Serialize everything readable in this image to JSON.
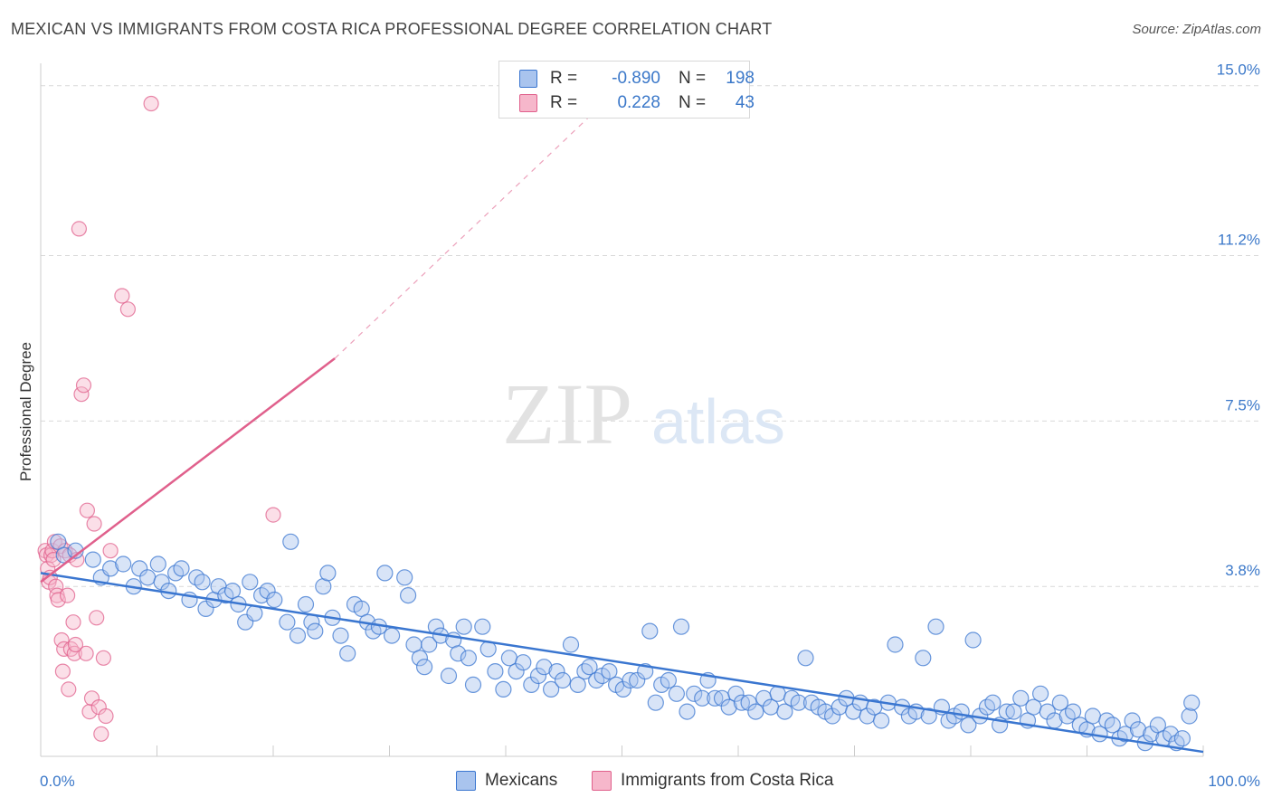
{
  "title": "MEXICAN VS IMMIGRANTS FROM COSTA RICA PROFESSIONAL DEGREE CORRELATION CHART",
  "source": "Source: ZipAtlas.com",
  "watermark": {
    "zip": "ZIP",
    "atlas": "atlas"
  },
  "colors": {
    "blue": "#3a76d0",
    "blue_fill": "#a9c4ee",
    "pink": "#e0608c",
    "pink_fill": "#f6b7cb",
    "tick_text": "#3b78c9",
    "grid": "#d9d9d9"
  },
  "legend": {
    "rows": [
      {
        "swatch": "blue",
        "r_label": "R =",
        "r_value": "-0.890",
        "n_label": "N =",
        "n_value": "198"
      },
      {
        "swatch": "pink",
        "r_label": "R =",
        "r_value": "0.228",
        "n_label": "N =",
        "n_value": "43"
      }
    ]
  },
  "bottom_legend": {
    "blue": "Mexicans",
    "pink": "Immigrants from Costa Rica"
  },
  "chart_data": {
    "type": "scatter",
    "title": "MEXICAN VS IMMIGRANTS FROM COSTA RICA PROFESSIONAL DEGREE CORRELATION CHART",
    "xlabel": "",
    "ylabel": "Professional Degree",
    "xlim": [
      0,
      100
    ],
    "ylim": [
      0,
      15.5
    ],
    "x_tick_labels": [
      {
        "value": 0,
        "label": "0.0%"
      },
      {
        "value": 100,
        "label": "100.0%"
      }
    ],
    "y_ticks": [
      {
        "value": 3.8,
        "label": "3.8%"
      },
      {
        "value": 7.5,
        "label": "7.5%"
      },
      {
        "value": 11.2,
        "label": "11.2%"
      },
      {
        "value": 15.0,
        "label": "15.0%"
      }
    ],
    "grid": "horizontal dashed",
    "legend_position": "top-center",
    "series": [
      {
        "name": "Mexicans",
        "color": "blue",
        "R": -0.89,
        "N": 198,
        "trend": {
          "x": [
            0,
            100
          ],
          "y": [
            4.1,
            0.1
          ]
        },
        "points": [
          [
            1.5,
            4.8
          ],
          [
            2.0,
            4.5
          ],
          [
            3.0,
            4.6
          ],
          [
            4.5,
            4.4
          ],
          [
            5.2,
            4.0
          ],
          [
            6.0,
            4.2
          ],
          [
            7.1,
            4.3
          ],
          [
            8.0,
            3.8
          ],
          [
            8.5,
            4.2
          ],
          [
            9.2,
            4.0
          ],
          [
            10.1,
            4.3
          ],
          [
            10.4,
            3.9
          ],
          [
            11.0,
            3.7
          ],
          [
            11.6,
            4.1
          ],
          [
            12.1,
            4.2
          ],
          [
            12.8,
            3.5
          ],
          [
            13.4,
            4.0
          ],
          [
            13.9,
            3.9
          ],
          [
            14.2,
            3.3
          ],
          [
            14.9,
            3.5
          ],
          [
            15.3,
            3.8
          ],
          [
            15.9,
            3.6
          ],
          [
            16.5,
            3.7
          ],
          [
            17.0,
            3.4
          ],
          [
            17.6,
            3.0
          ],
          [
            18.0,
            3.9
          ],
          [
            18.4,
            3.2
          ],
          [
            19.0,
            3.6
          ],
          [
            19.5,
            3.7
          ],
          [
            20.1,
            3.5
          ],
          [
            21.2,
            3.0
          ],
          [
            21.5,
            4.8
          ],
          [
            22.1,
            2.7
          ],
          [
            22.8,
            3.4
          ],
          [
            23.3,
            3.0
          ],
          [
            23.6,
            2.8
          ],
          [
            24.3,
            3.8
          ],
          [
            24.7,
            4.1
          ],
          [
            25.1,
            3.1
          ],
          [
            25.8,
            2.7
          ],
          [
            26.4,
            2.3
          ],
          [
            27.0,
            3.4
          ],
          [
            27.6,
            3.3
          ],
          [
            28.1,
            3.0
          ],
          [
            28.6,
            2.8
          ],
          [
            29.1,
            2.9
          ],
          [
            29.6,
            4.1
          ],
          [
            30.2,
            2.7
          ],
          [
            31.3,
            4.0
          ],
          [
            31.6,
            3.6
          ],
          [
            32.1,
            2.5
          ],
          [
            32.6,
            2.2
          ],
          [
            33.0,
            2.0
          ],
          [
            33.4,
            2.5
          ],
          [
            34.0,
            2.9
          ],
          [
            34.4,
            2.7
          ],
          [
            35.1,
            1.8
          ],
          [
            35.5,
            2.6
          ],
          [
            35.9,
            2.3
          ],
          [
            36.4,
            2.9
          ],
          [
            36.8,
            2.2
          ],
          [
            37.2,
            1.6
          ],
          [
            38.0,
            2.9
          ],
          [
            38.5,
            2.4
          ],
          [
            39.1,
            1.9
          ],
          [
            39.8,
            1.5
          ],
          [
            40.3,
            2.2
          ],
          [
            40.9,
            1.9
          ],
          [
            41.5,
            2.1
          ],
          [
            42.2,
            1.6
          ],
          [
            42.8,
            1.8
          ],
          [
            43.3,
            2.0
          ],
          [
            43.9,
            1.5
          ],
          [
            44.4,
            1.9
          ],
          [
            44.9,
            1.7
          ],
          [
            45.6,
            2.5
          ],
          [
            46.2,
            1.6
          ],
          [
            46.8,
            1.9
          ],
          [
            47.2,
            2.0
          ],
          [
            47.8,
            1.7
          ],
          [
            48.3,
            1.8
          ],
          [
            48.9,
            1.9
          ],
          [
            49.5,
            1.6
          ],
          [
            50.1,
            1.5
          ],
          [
            50.7,
            1.7
          ],
          [
            51.3,
            1.7
          ],
          [
            52.0,
            1.9
          ],
          [
            52.4,
            2.8
          ],
          [
            52.9,
            1.2
          ],
          [
            53.4,
            1.6
          ],
          [
            54.0,
            1.7
          ],
          [
            54.7,
            1.4
          ],
          [
            55.1,
            2.9
          ],
          [
            55.6,
            1.0
          ],
          [
            56.2,
            1.4
          ],
          [
            56.9,
            1.3
          ],
          [
            57.4,
            1.7
          ],
          [
            58.0,
            1.3
          ],
          [
            58.6,
            1.3
          ],
          [
            59.2,
            1.1
          ],
          [
            59.8,
            1.4
          ],
          [
            60.3,
            1.2
          ],
          [
            60.9,
            1.2
          ],
          [
            61.5,
            1.0
          ],
          [
            62.2,
            1.3
          ],
          [
            62.8,
            1.1
          ],
          [
            63.4,
            1.4
          ],
          [
            64.0,
            1.0
          ],
          [
            64.6,
            1.3
          ],
          [
            65.2,
            1.2
          ],
          [
            65.8,
            2.2
          ],
          [
            66.3,
            1.2
          ],
          [
            66.9,
            1.1
          ],
          [
            67.5,
            1.0
          ],
          [
            68.1,
            0.9
          ],
          [
            68.7,
            1.1
          ],
          [
            69.3,
            1.3
          ],
          [
            69.9,
            1.0
          ],
          [
            70.5,
            1.2
          ],
          [
            71.1,
            0.9
          ],
          [
            71.7,
            1.1
          ],
          [
            72.3,
            0.8
          ],
          [
            72.9,
            1.2
          ],
          [
            73.5,
            2.5
          ],
          [
            74.1,
            1.1
          ],
          [
            74.7,
            0.9
          ],
          [
            75.3,
            1.0
          ],
          [
            75.9,
            2.2
          ],
          [
            76.4,
            0.9
          ],
          [
            77.0,
            2.9
          ],
          [
            77.5,
            1.1
          ],
          [
            78.1,
            0.8
          ],
          [
            78.6,
            0.9
          ],
          [
            79.2,
            1.0
          ],
          [
            79.8,
            0.7
          ],
          [
            80.2,
            2.6
          ],
          [
            80.8,
            0.9
          ],
          [
            81.4,
            1.1
          ],
          [
            81.9,
            1.2
          ],
          [
            82.5,
            0.7
          ],
          [
            83.1,
            1.0
          ],
          [
            83.7,
            1.0
          ],
          [
            84.3,
            1.3
          ],
          [
            84.9,
            0.8
          ],
          [
            85.4,
            1.1
          ],
          [
            86.0,
            1.4
          ],
          [
            86.6,
            1.0
          ],
          [
            87.2,
            0.8
          ],
          [
            87.7,
            1.2
          ],
          [
            88.3,
            0.9
          ],
          [
            88.8,
            1.0
          ],
          [
            89.4,
            0.7
          ],
          [
            90.0,
            0.6
          ],
          [
            90.5,
            0.9
          ],
          [
            91.1,
            0.5
          ],
          [
            91.7,
            0.8
          ],
          [
            92.2,
            0.7
          ],
          [
            92.8,
            0.4
          ],
          [
            93.3,
            0.5
          ],
          [
            93.9,
            0.8
          ],
          [
            94.4,
            0.6
          ],
          [
            95.0,
            0.3
          ],
          [
            95.5,
            0.5
          ],
          [
            96.1,
            0.7
          ],
          [
            96.6,
            0.4
          ],
          [
            97.2,
            0.5
          ],
          [
            97.7,
            0.3
          ],
          [
            98.2,
            0.4
          ],
          [
            98.8,
            0.9
          ],
          [
            99.0,
            1.2
          ]
        ]
      },
      {
        "name": "Immigrants from Costa Rica",
        "color": "pink",
        "R": 0.228,
        "N": 43,
        "trend": {
          "x": [
            0,
            25.3
          ],
          "y": [
            3.9,
            8.9
          ],
          "dashed_to": {
            "x": 50,
            "y": 15.0
          }
        },
        "points": [
          [
            0.4,
            4.6
          ],
          [
            0.5,
            4.5
          ],
          [
            0.6,
            4.2
          ],
          [
            0.7,
            3.9
          ],
          [
            0.8,
            4.0
          ],
          [
            0.9,
            4.5
          ],
          [
            1.0,
            4.6
          ],
          [
            1.1,
            4.4
          ],
          [
            1.2,
            4.8
          ],
          [
            1.3,
            3.8
          ],
          [
            1.4,
            3.6
          ],
          [
            1.5,
            3.5
          ],
          [
            1.7,
            4.7
          ],
          [
            1.8,
            2.6
          ],
          [
            2.0,
            2.4
          ],
          [
            2.1,
            4.6
          ],
          [
            2.3,
            3.6
          ],
          [
            2.4,
            1.5
          ],
          [
            2.5,
            4.5
          ],
          [
            2.6,
            2.4
          ],
          [
            2.8,
            3.0
          ],
          [
            2.9,
            2.3
          ],
          [
            3.0,
            2.5
          ],
          [
            3.1,
            4.4
          ],
          [
            3.3,
            11.8
          ],
          [
            3.5,
            8.1
          ],
          [
            3.7,
            8.3
          ],
          [
            3.9,
            2.3
          ],
          [
            4.0,
            5.5
          ],
          [
            4.2,
            1.0
          ],
          [
            4.4,
            1.3
          ],
          [
            4.6,
            5.2
          ],
          [
            4.8,
            3.1
          ],
          [
            5.0,
            1.1
          ],
          [
            5.2,
            0.5
          ],
          [
            5.4,
            2.2
          ],
          [
            5.6,
            0.9
          ],
          [
            6.0,
            4.6
          ],
          [
            7.0,
            10.3
          ],
          [
            7.5,
            10.0
          ],
          [
            9.5,
            14.6
          ],
          [
            20.0,
            5.4
          ],
          [
            1.9,
            1.9
          ]
        ]
      }
    ]
  }
}
